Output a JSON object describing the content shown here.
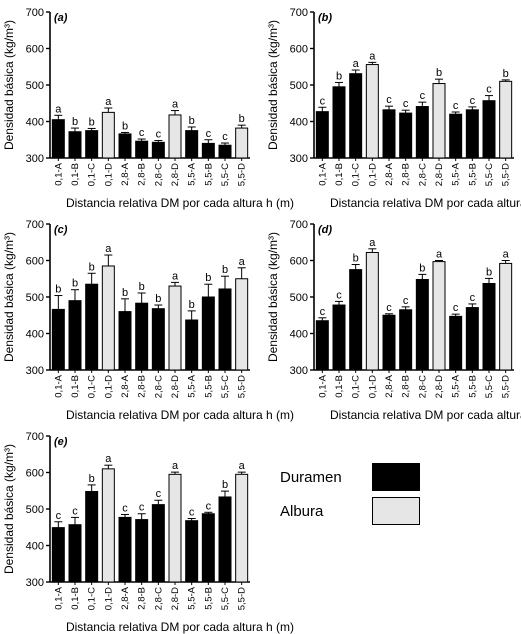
{
  "colors": {
    "duramen": "#000000",
    "albura": "#e6e6e6",
    "axis": "#000000"
  },
  "legend": {
    "items": [
      {
        "label": "Duramen",
        "color": "#000000"
      },
      {
        "label": "Albura",
        "color": "#e6e6e6"
      }
    ]
  },
  "chart_data": [
    {
      "type": "bar",
      "panel_label": "(a)",
      "categories": [
        "0,1-A",
        "0,1-B",
        "0,1-C",
        "0,1-D",
        "2,8-A",
        "2,8-B",
        "2,8-C",
        "2,8-D",
        "5,5-A",
        "5,5-B",
        "5,5-C",
        "5,5-D"
      ],
      "values": [
        405,
        372,
        375,
        425,
        366,
        346,
        343,
        418,
        375,
        340,
        335,
        382
      ],
      "errors": [
        12,
        10,
        6,
        12,
        4,
        6,
        5,
        12,
        10,
        10,
        6,
        8
      ],
      "letters": [
        "a",
        "b",
        "b",
        "a",
        "b",
        "c",
        "c",
        "a",
        "b",
        "c",
        "c",
        "b"
      ],
      "groups": [
        "Duramen",
        "Duramen",
        "Duramen",
        "Albura",
        "Duramen",
        "Duramen",
        "Duramen",
        "Albura",
        "Duramen",
        "Duramen",
        "Duramen",
        "Albura"
      ],
      "ylabel": "Densidad básica (kg/m³)",
      "xlabel": "Distancia relativa DM por cada altura h (m)",
      "ylim": [
        300,
        700
      ],
      "yticks": [
        300,
        400,
        500,
        600,
        700
      ]
    },
    {
      "type": "bar",
      "panel_label": "(b)",
      "categories": [
        "0,1-A",
        "0,1-B",
        "0,1-C",
        "0,1-D",
        "2,8-A",
        "2,8-B",
        "2,8-C",
        "2,8-D",
        "5,5-A",
        "5,5-B",
        "5,5-C",
        "5,5-D"
      ],
      "values": [
        427,
        495,
        531,
        556,
        432,
        423,
        441,
        504,
        420,
        432,
        457,
        510
      ],
      "errors": [
        12,
        12,
        10,
        6,
        10,
        8,
        12,
        12,
        6,
        8,
        14,
        4
      ],
      "letters": [
        "c",
        "b",
        "a",
        "a",
        "c",
        "c",
        "c",
        "b",
        "c",
        "c",
        "c",
        "b"
      ],
      "groups": [
        "Duramen",
        "Duramen",
        "Duramen",
        "Albura",
        "Duramen",
        "Duramen",
        "Duramen",
        "Albura",
        "Duramen",
        "Duramen",
        "Duramen",
        "Albura"
      ],
      "ylabel": "Densidad básica (kg/m³)",
      "xlabel": "Distancia relativa DM por cada altura h (m)",
      "ylim": [
        300,
        700
      ],
      "yticks": [
        300,
        400,
        500,
        600,
        700
      ]
    },
    {
      "type": "bar",
      "panel_label": "(c)",
      "categories": [
        "0,1-A",
        "0,1-B",
        "0,1-C",
        "0,1-D",
        "2,8-A",
        "2,8-B",
        "2,8-C",
        "2,8-D",
        "5,5-A",
        "5,5-B",
        "5,5-C",
        "5,5-D"
      ],
      "values": [
        466,
        490,
        535,
        585,
        460,
        483,
        468,
        530,
        437,
        500,
        522,
        550
      ],
      "errors": [
        38,
        30,
        30,
        30,
        35,
        28,
        10,
        10,
        25,
        35,
        35,
        30
      ],
      "letters": [
        "b",
        "b",
        "b",
        "a",
        "b",
        "b",
        "b",
        "a",
        "b",
        "b",
        "b",
        "a"
      ],
      "groups": [
        "Duramen",
        "Duramen",
        "Duramen",
        "Albura",
        "Duramen",
        "Duramen",
        "Duramen",
        "Albura",
        "Duramen",
        "Duramen",
        "Duramen",
        "Albura"
      ],
      "ylabel": "Densidad básica (kg/m³)",
      "xlabel": "Distancia relativa DM por cada altura h (m)",
      "ylim": [
        300,
        700
      ],
      "yticks": [
        300,
        400,
        500,
        600,
        700
      ]
    },
    {
      "type": "bar",
      "panel_label": "(d)",
      "categories": [
        "0,1-A",
        "0,1-B",
        "0,1-C",
        "0,1-D",
        "2,8-A",
        "2,8-B",
        "2,8-C",
        "2,8-D",
        "5,5-A",
        "5,5-B",
        "5,5-C",
        "5,5-D"
      ],
      "values": [
        435,
        478,
        575,
        622,
        450,
        465,
        548,
        597,
        447,
        471,
        537,
        592
      ],
      "errors": [
        8,
        10,
        14,
        10,
        4,
        8,
        14,
        3,
        6,
        10,
        14,
        8
      ],
      "letters": [
        "c",
        "c",
        "b",
        "a",
        "c",
        "c",
        "b",
        "a",
        "c",
        "c",
        "b",
        "a"
      ],
      "groups": [
        "Duramen",
        "Duramen",
        "Duramen",
        "Albura",
        "Duramen",
        "Duramen",
        "Duramen",
        "Albura",
        "Duramen",
        "Duramen",
        "Duramen",
        "Albura"
      ],
      "ylabel": "Densidad básica (kg/m³)",
      "xlabel": "Distancia relativa DM por cada altura h (m)",
      "ylim": [
        300,
        700
      ],
      "yticks": [
        300,
        400,
        500,
        600,
        700
      ]
    },
    {
      "type": "bar",
      "panel_label": "(e)",
      "categories": [
        "0,1-A",
        "0,1-B",
        "0,1-C",
        "0,1-D",
        "2,8-A",
        "2,8-B",
        "2,8-C",
        "2,8-D",
        "5,5-A",
        "5,5-B",
        "5,5-C",
        "5,5-D"
      ],
      "values": [
        449,
        457,
        548,
        610,
        477,
        471,
        512,
        595,
        468,
        487,
        533,
        595
      ],
      "errors": [
        16,
        20,
        18,
        10,
        8,
        16,
        12,
        6,
        6,
        4,
        16,
        6
      ],
      "letters": [
        "c",
        "c",
        "b",
        "a",
        "c",
        "c",
        "c",
        "a",
        "c",
        "c",
        "b",
        "a"
      ],
      "groups": [
        "Duramen",
        "Duramen",
        "Duramen",
        "Albura",
        "Duramen",
        "Duramen",
        "Duramen",
        "Albura",
        "Duramen",
        "Duramen",
        "Duramen",
        "Albura"
      ],
      "ylabel": "Densidad básica (kg/m³)",
      "xlabel": "Distancia relativa DM por cada altura h (m)",
      "ylim": [
        300,
        700
      ],
      "yticks": [
        300,
        400,
        500,
        600,
        700
      ]
    }
  ]
}
